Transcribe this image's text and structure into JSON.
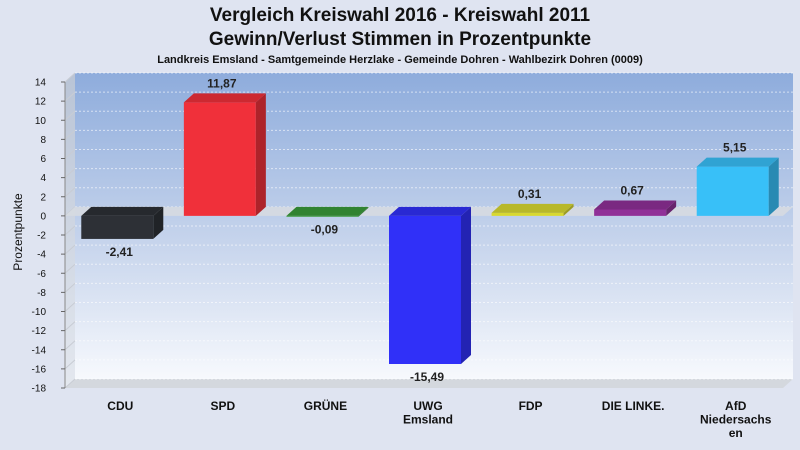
{
  "chart_data": {
    "type": "bar",
    "title": "Vergleich Kreiswahl 2016 - Kreiswahl 2011",
    "subtitle_line": "Gewinn/Verlust Stimmen in Prozentpunkte",
    "subtitle": "Landkreis Emsland - Samtgemeinde Herzlake - Gemeinde Dohren - Wahlbezirk Dohren (0009)",
    "ylabel": "Prozentpunkte",
    "ylim": [
      -18,
      14
    ],
    "yticks": [
      14,
      12,
      10,
      8,
      6,
      4,
      2,
      0,
      -2,
      -4,
      -6,
      -8,
      -10,
      -12,
      -14,
      -16,
      -18
    ],
    "categories": [
      [
        "CDU"
      ],
      [
        "SPD"
      ],
      [
        "GRÜNE"
      ],
      [
        "UWG",
        "Emsland"
      ],
      [
        "FDP"
      ],
      [
        "DIE LINKE."
      ],
      [
        "AfD",
        "Niedersachs",
        "en"
      ]
    ],
    "values": [
      -2.41,
      11.87,
      -0.09,
      -15.49,
      0.31,
      0.67,
      5.15
    ],
    "value_labels": [
      "-2,41",
      "11,87",
      "-0,09",
      "-15,49",
      "0,31",
      "0,67",
      "5,15"
    ],
    "colors": [
      "#2d3036",
      "#f0303a",
      "#3a9a3a",
      "#3030f8",
      "#d8d830",
      "#903098",
      "#38c0f8"
    ],
    "grid": true
  }
}
